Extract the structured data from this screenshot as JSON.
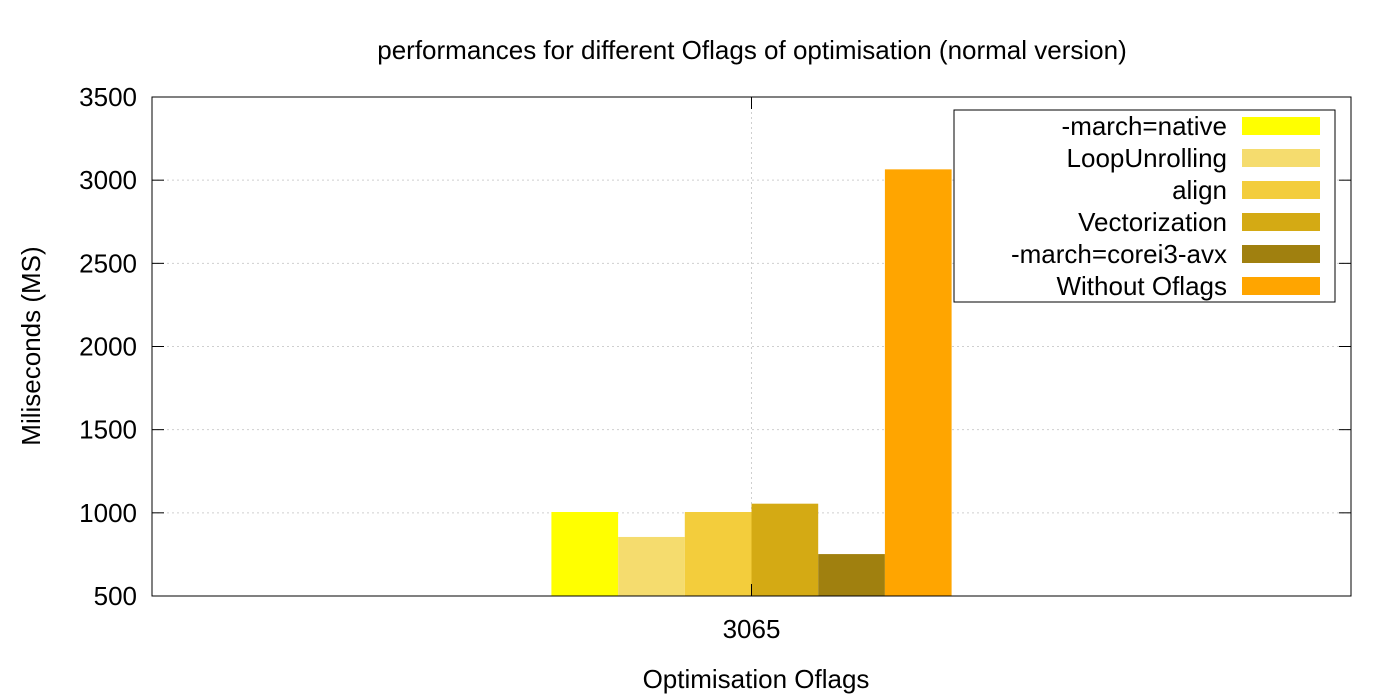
{
  "chart_data": {
    "type": "bar",
    "title": "performances for different Oflags  of optimisation (normal version)",
    "xlabel": "Optimisation Oflags",
    "ylabel": "Miliseconds (MS)",
    "categories": [
      "3065"
    ],
    "ylim": [
      500,
      3500
    ],
    "yticks": [
      "500",
      "1000",
      "1500",
      "2000",
      "2500",
      "3000",
      "3500"
    ],
    "grid": true,
    "legend_position": "top-right",
    "series": [
      {
        "name": "-march=native",
        "color": "#ffff00",
        "values": [
          1005
        ]
      },
      {
        "name": "LoopUnrolling",
        "color": "#f5dc6e",
        "values": [
          855
        ]
      },
      {
        "name": "align",
        "color": "#f3cd3c",
        "values": [
          1005
        ]
      },
      {
        "name": "Vectorization",
        "color": "#d4aa14",
        "values": [
          1055
        ]
      },
      {
        "name": "-march=corei3-avx",
        "color": "#a0800f",
        "values": [
          752
        ]
      },
      {
        "name": "Without Oflags",
        "color": "#ffa500",
        "values": [
          3065
        ]
      }
    ]
  }
}
